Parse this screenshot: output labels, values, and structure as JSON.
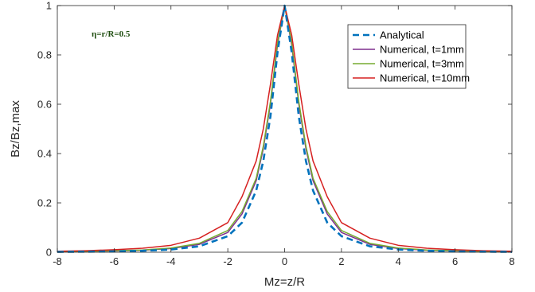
{
  "chart_data": {
    "type": "line",
    "title": "",
    "xlabel": "Mz=z/R",
    "ylabel": "Bz/Bz,max",
    "xlim": [
      -8,
      8
    ],
    "ylim": [
      0,
      1
    ],
    "xticks": [
      -8,
      -6,
      -4,
      -2,
      0,
      2,
      4,
      6,
      8
    ],
    "yticks": [
      0,
      0.2,
      0.4,
      0.6,
      0.8,
      1
    ],
    "grid": false,
    "legend_position": "top-right",
    "annotation": "η=r/R=0.5",
    "x": [
      -8,
      -7,
      -6,
      -5,
      -4,
      -3,
      -2,
      -1.5,
      -1,
      -0.75,
      -0.5,
      -0.25,
      0,
      0.25,
      0.5,
      0.75,
      1,
      1.5,
      2,
      3,
      4,
      5,
      6,
      7,
      8
    ],
    "series": [
      {
        "name": "Analytical",
        "color": "#0072bd",
        "style": "dashed",
        "values": [
          0.0015,
          0.0022,
          0.0033,
          0.0058,
          0.011,
          0.024,
          0.065,
          0.12,
          0.25,
          0.37,
          0.55,
          0.81,
          1.0,
          0.81,
          0.55,
          0.37,
          0.25,
          0.12,
          0.065,
          0.024,
          0.011,
          0.0058,
          0.0033,
          0.0022,
          0.0015
        ]
      },
      {
        "name": "Numerical, t=1mm",
        "color": "#7e2f8e",
        "style": "solid",
        "values": [
          0.002,
          0.003,
          0.005,
          0.008,
          0.015,
          0.032,
          0.08,
          0.155,
          0.29,
          0.42,
          0.6,
          0.84,
          1.0,
          0.84,
          0.6,
          0.42,
          0.29,
          0.155,
          0.08,
          0.032,
          0.015,
          0.008,
          0.005,
          0.003,
          0.002
        ]
      },
      {
        "name": "Numerical, t=3mm",
        "color": "#77ac30",
        "style": "solid",
        "values": [
          0.0025,
          0.0035,
          0.006,
          0.009,
          0.017,
          0.036,
          0.088,
          0.165,
          0.3,
          0.43,
          0.61,
          0.85,
          1.0,
          0.85,
          0.61,
          0.43,
          0.3,
          0.165,
          0.088,
          0.036,
          0.017,
          0.009,
          0.006,
          0.0035,
          0.0025
        ]
      },
      {
        "name": "Numerical, t=10mm",
        "color": "#d62020",
        "style": "solid",
        "values": [
          0.004,
          0.006,
          0.01,
          0.016,
          0.028,
          0.057,
          0.12,
          0.225,
          0.37,
          0.5,
          0.68,
          0.88,
          1.0,
          0.88,
          0.68,
          0.5,
          0.37,
          0.225,
          0.12,
          0.057,
          0.028,
          0.016,
          0.01,
          0.006,
          0.004
        ]
      }
    ]
  }
}
